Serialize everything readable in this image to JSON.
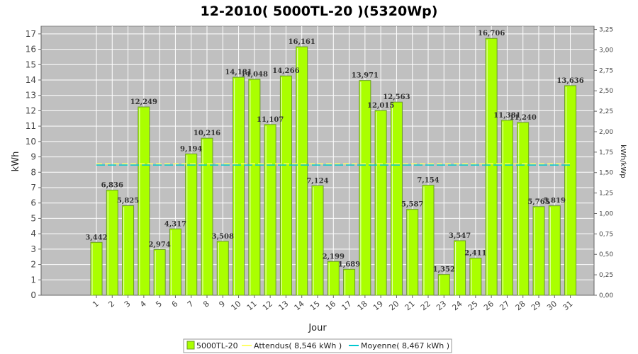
{
  "colors": {
    "plot_bg": "#c0c0c0",
    "grid": "#ffffff",
    "bar_fill": "#aaff00",
    "bar_border": "#6a9a2a",
    "attendus_line": "#ffff66",
    "moyenne_line": "#00c8d0"
  },
  "chart_data": {
    "type": "bar",
    "title": "12-2010( 5000TL-20 )(5320Wp)",
    "xlabel": "Jour",
    "ylabel": "kWh",
    "y2label": "kWh/kWp",
    "ylim": [
      0,
      17.5
    ],
    "y2lim": [
      0,
      3.29
    ],
    "yticks": [
      "0",
      "1",
      "2",
      "3",
      "4",
      "5",
      "6",
      "7",
      "8",
      "9",
      "10",
      "11",
      "12",
      "13",
      "14",
      "15",
      "16",
      "17"
    ],
    "y2ticks": [
      "0,00",
      "0,25",
      "0,50",
      "0,75",
      "1,00",
      "1,25",
      "1,50",
      "1,75",
      "2,00",
      "2,25",
      "2,50",
      "2,75",
      "3,00",
      "3,25"
    ],
    "grid": true,
    "legend_position": "bottom",
    "categories": [
      "1",
      "2",
      "3",
      "4",
      "5",
      "6",
      "7",
      "8",
      "9",
      "10",
      "11",
      "12",
      "13",
      "14",
      "15",
      "16",
      "17",
      "18",
      "19",
      "20",
      "21",
      "22",
      "23",
      "24",
      "25",
      "26",
      "27",
      "28",
      "29",
      "30",
      "31"
    ],
    "category_values": [
      1,
      2,
      3,
      4,
      5,
      6,
      7,
      8,
      9,
      10,
      11,
      12,
      13,
      14,
      15,
      16,
      17,
      18,
      19,
      20,
      21,
      22,
      23,
      24,
      25,
      26,
      27,
      28,
      29,
      30,
      31
    ],
    "bar_days": [
      4,
      5,
      6,
      7,
      8,
      9,
      10,
      11,
      12,
      13,
      14,
      15,
      16,
      17,
      18,
      19,
      20,
      21,
      22,
      23,
      24,
      25,
      26,
      27,
      28,
      29,
      30,
      31,
      32,
      33,
      34
    ],
    "series": [
      {
        "name": "5000TL-20",
        "type": "bar",
        "values": [
          3.442,
          6.836,
          5.825,
          12.249,
          2.974,
          4.317,
          9.194,
          10.216,
          3.508,
          14.181,
          14.048,
          11.107,
          14.266,
          16.161,
          7.124,
          2.199,
          1.689,
          13.971,
          12.015,
          12.563,
          5.587,
          7.154,
          1.352,
          3.547,
          2.411,
          16.706,
          11.381,
          11.24,
          5.765,
          5.819,
          13.636
        ],
        "labels": [
          "3,442",
          "6,836",
          "5,825",
          "12,249",
          "2,974",
          "4,317",
          "9,194",
          "10,216",
          "3,508",
          "14,181",
          "14,048",
          "11,107",
          "14,266",
          "16,161",
          "7,124",
          "2,199",
          "1,689",
          "13,971",
          "12,015",
          "12,563",
          "5,587",
          "7,154",
          "1,352",
          "3,547",
          "2,411",
          "16,706",
          "11,381",
          "11,240",
          "5,765",
          "5,819",
          "13,636"
        ]
      },
      {
        "name": "Attendus( 8,546 kWh )",
        "type": "line",
        "value": 8.546
      },
      {
        "name": "Moyenne( 8,467 kWh )",
        "type": "line",
        "value": 8.467
      }
    ]
  }
}
